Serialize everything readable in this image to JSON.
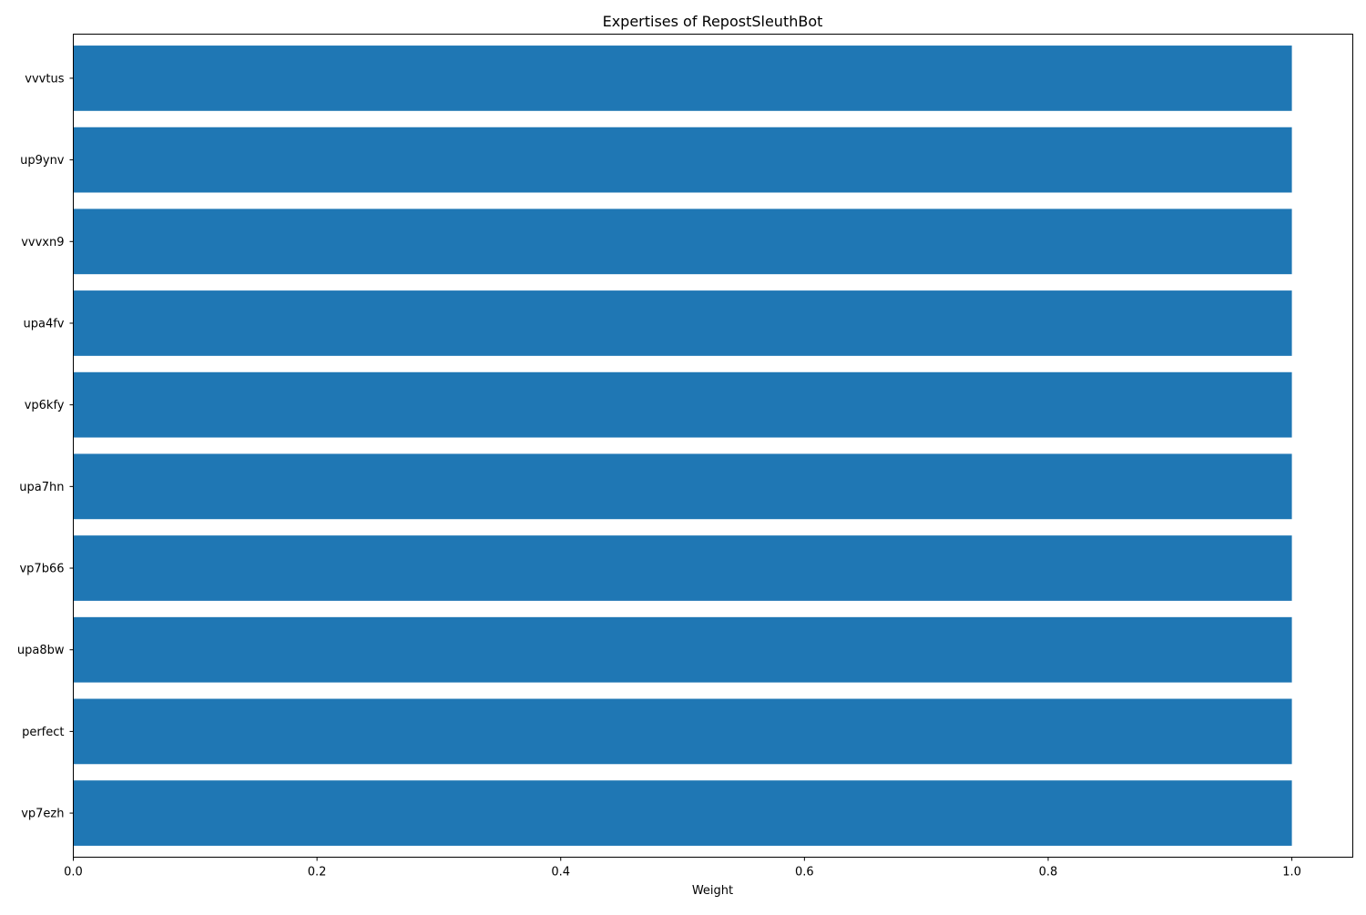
{
  "chart_data": {
    "type": "bar",
    "orientation": "horizontal",
    "title": "Expertises of RepostSleuthBot",
    "xlabel": "Weight",
    "ylabel": "",
    "categories": [
      "vvvtus",
      "up9ynv",
      "vvvxn9",
      "upa4fv",
      "vp6kfy",
      "upa7hn",
      "vp7b66",
      "upa8bw",
      "perfect",
      "vp7ezh"
    ],
    "values": [
      1.0,
      1.0,
      1.0,
      1.0,
      1.0,
      1.0,
      1.0,
      1.0,
      1.0,
      1.0
    ],
    "xlim": [
      0.0,
      1.05
    ],
    "xticks": [
      0.0,
      0.2,
      0.4,
      0.6,
      0.8,
      1.0
    ],
    "xtick_labels": [
      "0.0",
      "0.2",
      "0.4",
      "0.6",
      "0.8",
      "1.0"
    ],
    "grid": false,
    "bar_color": "#1f77b4"
  }
}
